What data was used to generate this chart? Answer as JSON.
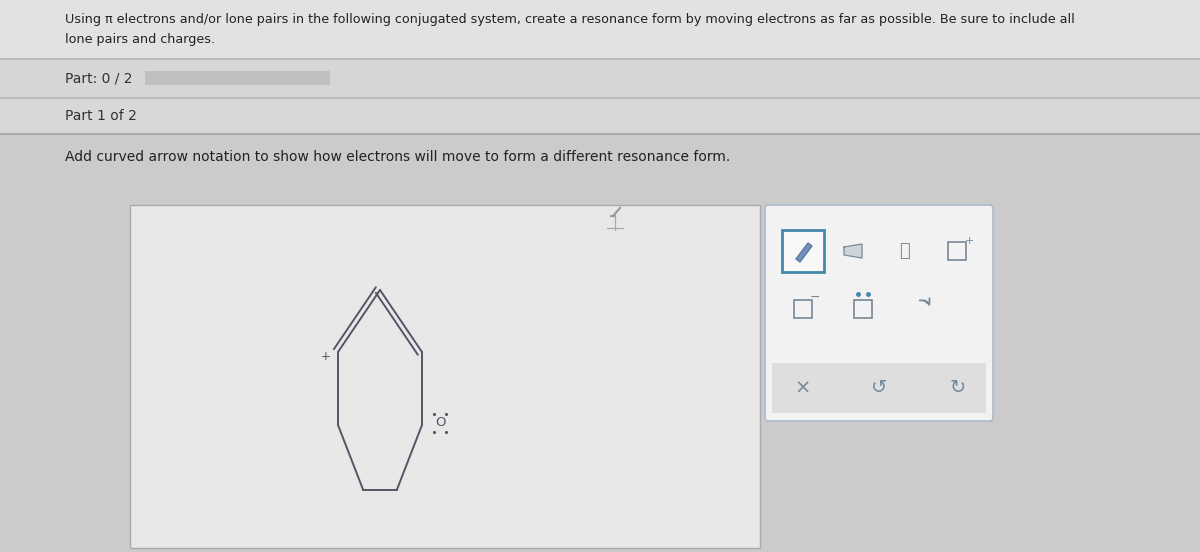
{
  "bg_color": "#cbcbcb",
  "header_bg": "#e2e2e2",
  "header_text_line1": "Using π electrons and/or lone pairs in the following conjugated system, create a resonance form by moving electrons as far as possible. Be sure to include all",
  "header_text_line2": "lone pairs and charges.",
  "part_bar_bg": "#d6d6d6",
  "part_bar_text": "Part: 0 / 2",
  "progress_bar_color": "#c0c0c0",
  "part1_bg": "#d8d8d8",
  "part1_text": "Part 1 of 2",
  "content_bg": "#cbcbcb",
  "instruction": "Add curved arrow notation to show how electrons will move to form a different resonance form.",
  "canvas_bg": "#e8e8e8",
  "canvas_border": "#aaaaaa",
  "ring_color": "#555566",
  "o_color": "#555566",
  "lp_color": "#555566",
  "plus_color": "#555566",
  "toolbar_bg": "#f2f2f2",
  "toolbar_border": "#aabbcc",
  "tb_selected_border": "#4488aa",
  "tb_icon_color": "#778899",
  "tb_blue_color": "#4488aa",
  "bottom_bar_bg": "#dedede",
  "bottom_icon_color": "#778899"
}
